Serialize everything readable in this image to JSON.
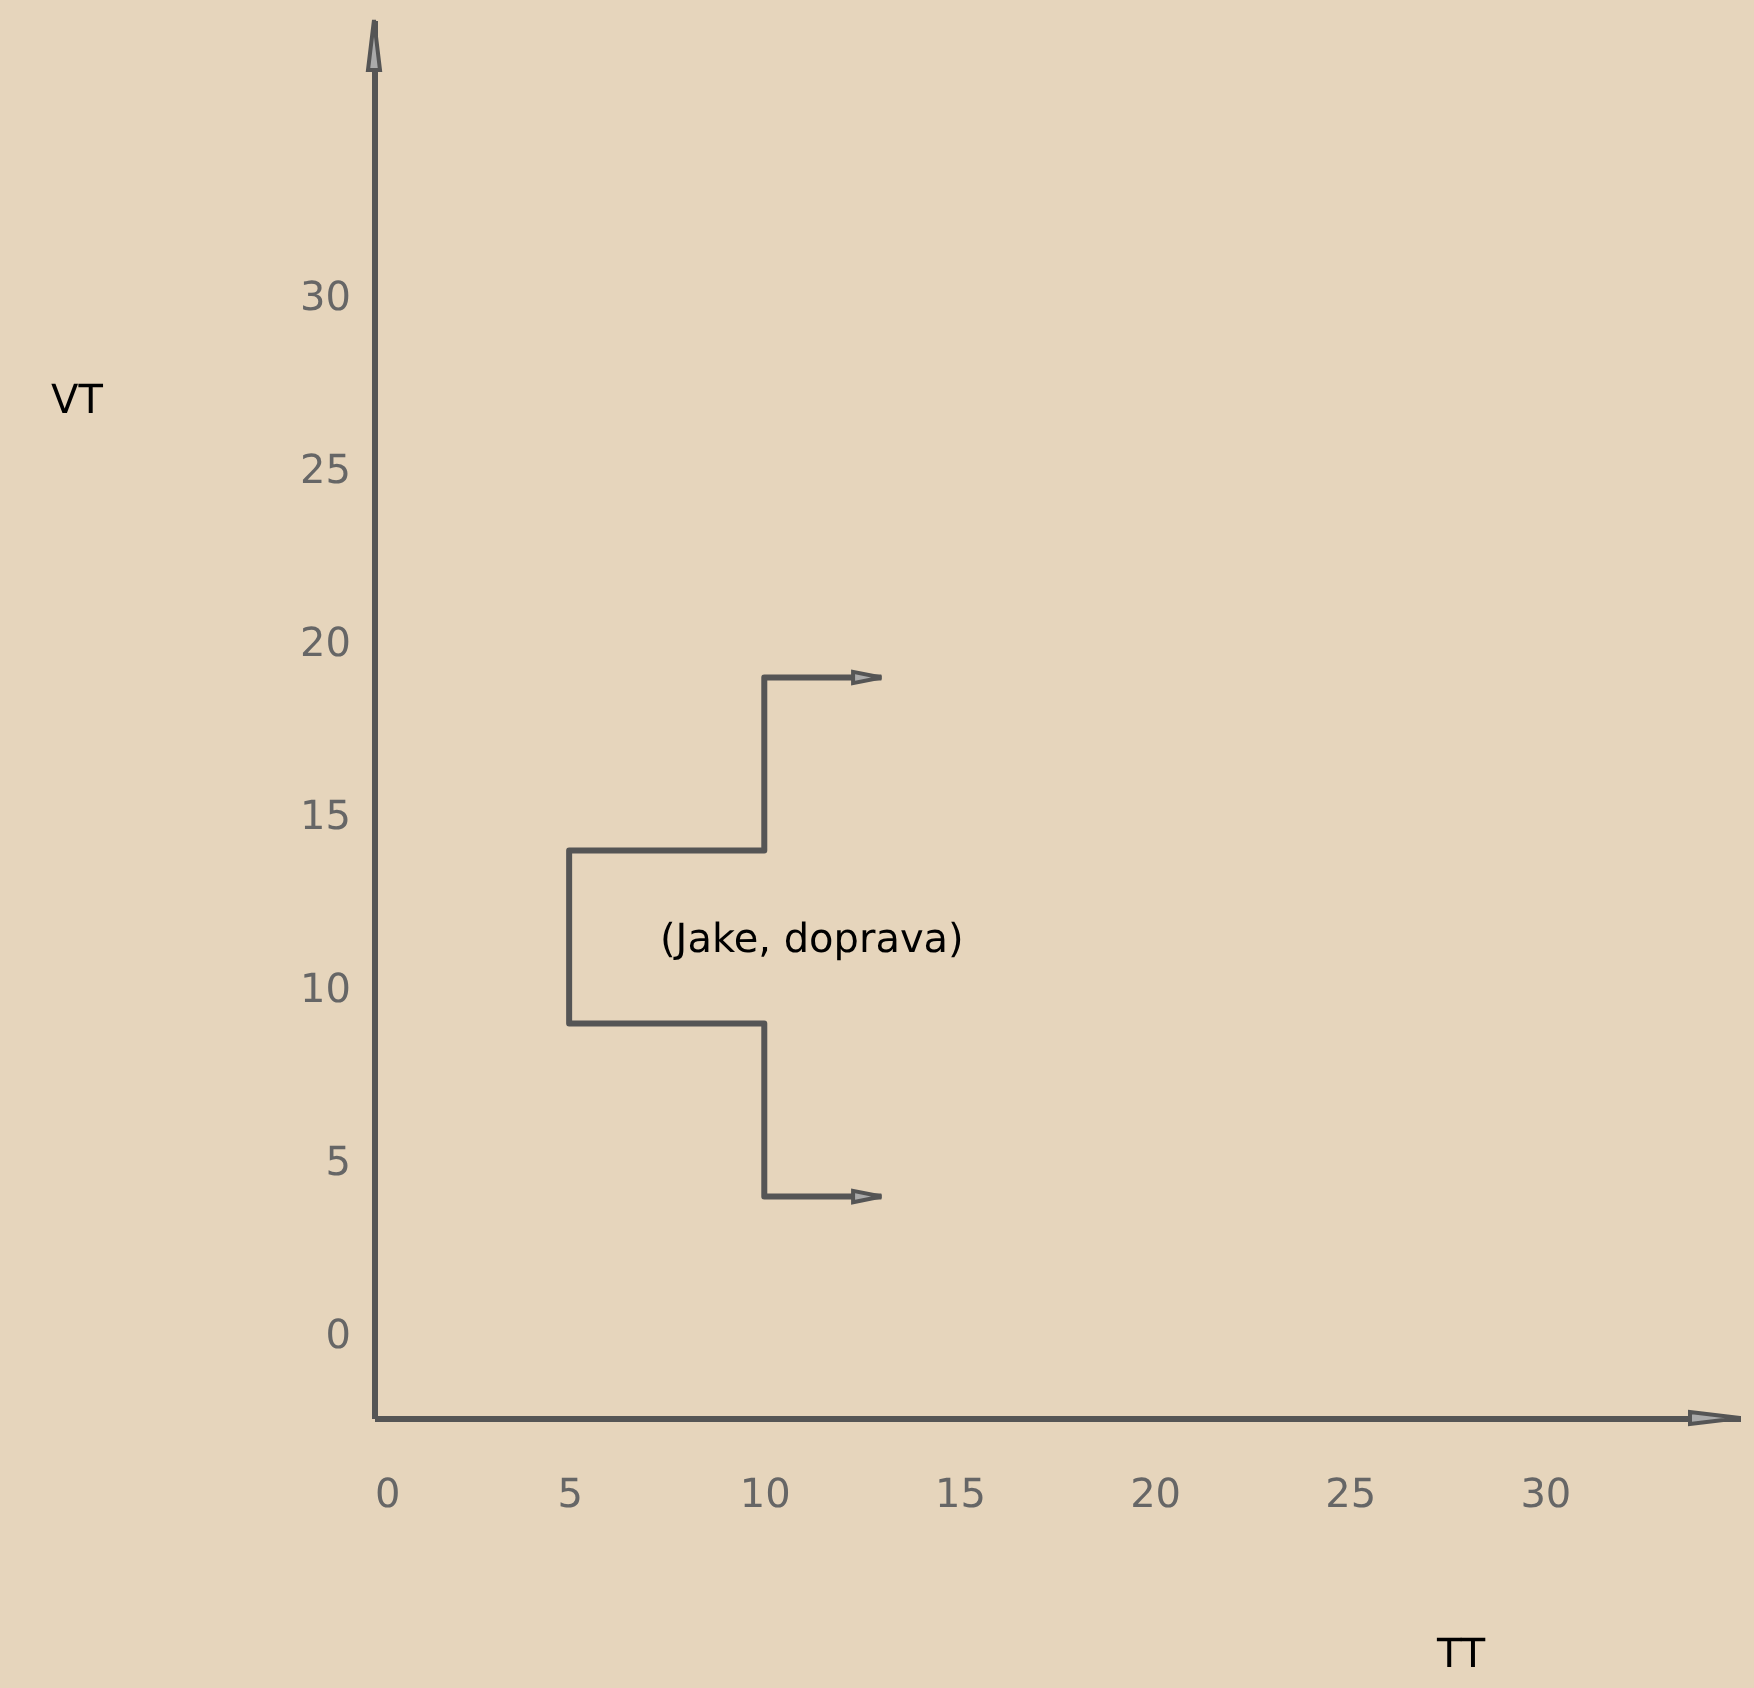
{
  "chart_data": {
    "type": "line",
    "xlabel": "TT",
    "ylabel": "VT",
    "x": [
      13,
      10,
      10,
      5,
      5,
      10,
      10,
      13
    ],
    "series": [
      {
        "color": "#555555",
        "values": [
          4,
          4,
          9,
          9,
          14,
          14,
          19,
          19
        ]
      }
    ],
    "xlim": [
      0,
      35
    ],
    "ylim": [
      -2.4,
      38
    ],
    "xticks": [
      0,
      5,
      10,
      15,
      20,
      25,
      30
    ],
    "yticks": [
      0,
      5,
      10,
      15,
      20,
      25,
      30
    ],
    "grid": false,
    "annotations": [
      "(Jake, doprava)"
    ]
  }
}
